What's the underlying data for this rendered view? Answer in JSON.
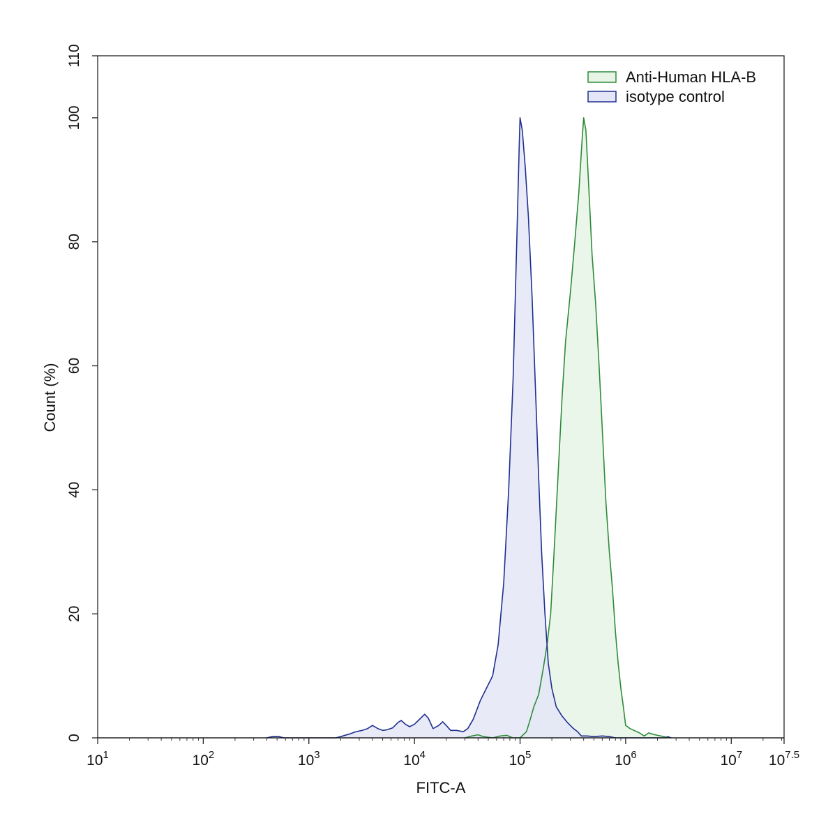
{
  "chart_data": {
    "type": "area",
    "title": "",
    "xlabel": "FITC-A",
    "ylabel": "Count  (%)",
    "x_scale": "log10",
    "xlim": [
      10,
      31622777
    ],
    "ylim": [
      0,
      110
    ],
    "grid": false,
    "legend_position": "top-right",
    "x_ticks": [
      {
        "value": 10,
        "base": "10",
        "exp": "1"
      },
      {
        "value": 100,
        "base": "10",
        "exp": "2"
      },
      {
        "value": 1000,
        "base": "10",
        "exp": "3"
      },
      {
        "value": 10000,
        "base": "10",
        "exp": "4"
      },
      {
        "value": 100000,
        "base": "10",
        "exp": "5"
      },
      {
        "value": 1000000,
        "base": "10",
        "exp": "6"
      },
      {
        "value": 10000000,
        "base": "10",
        "exp": "7"
      },
      {
        "value": 31622777,
        "base": "10",
        "exp": "7.5"
      }
    ],
    "y_ticks": [
      "0",
      "20",
      "40",
      "60",
      "80",
      "100",
      "110"
    ],
    "series": [
      {
        "name": "Anti-Human HLA-B",
        "stroke": "#2e8b3a",
        "fill": "#e8f4e6",
        "points": [
          [
            30000,
            0
          ],
          [
            35000,
            0.3
          ],
          [
            40000,
            0.5
          ],
          [
            45000,
            0.2
          ],
          [
            55000,
            0
          ],
          [
            65000,
            0.3
          ],
          [
            75000,
            0.4
          ],
          [
            85000,
            0
          ],
          [
            100000,
            0
          ],
          [
            115000,
            1
          ],
          [
            125000,
            3
          ],
          [
            135000,
            5
          ],
          [
            150000,
            7
          ],
          [
            165000,
            11
          ],
          [
            180000,
            15
          ],
          [
            195000,
            20
          ],
          [
            210000,
            30
          ],
          [
            230000,
            43
          ],
          [
            250000,
            55
          ],
          [
            270000,
            64
          ],
          [
            300000,
            72
          ],
          [
            330000,
            80
          ],
          [
            360000,
            88
          ],
          [
            385000,
            96
          ],
          [
            400000,
            100
          ],
          [
            420000,
            98
          ],
          [
            450000,
            88
          ],
          [
            480000,
            78
          ],
          [
            520000,
            70
          ],
          [
            560000,
            60
          ],
          [
            600000,
            50
          ],
          [
            650000,
            38
          ],
          [
            700000,
            30
          ],
          [
            750000,
            24
          ],
          [
            800000,
            17
          ],
          [
            850000,
            12
          ],
          [
            900000,
            8
          ],
          [
            950000,
            5
          ],
          [
            1000000,
            2
          ],
          [
            1100000,
            1.5
          ],
          [
            1200000,
            1.2
          ],
          [
            1350000,
            0.8
          ],
          [
            1500000,
            0.3
          ],
          [
            1650000,
            0.8
          ],
          [
            1800000,
            0.6
          ],
          [
            2000000,
            0.4
          ],
          [
            2300000,
            0.2
          ],
          [
            2600000,
            0
          ]
        ]
      },
      {
        "name": "isotype control",
        "stroke": "#1f2f8f",
        "fill": "#e4e6f7",
        "points": [
          [
            400,
            0
          ],
          [
            450,
            0.2
          ],
          [
            520,
            0.2
          ],
          [
            580,
            0
          ],
          [
            1800,
            0
          ],
          [
            2100,
            0.3
          ],
          [
            2400,
            0.6
          ],
          [
            2800,
            1
          ],
          [
            3200,
            1.2
          ],
          [
            3600,
            1.5
          ],
          [
            4000,
            2
          ],
          [
            4500,
            1.5
          ],
          [
            5000,
            1.2
          ],
          [
            5500,
            1.3
          ],
          [
            6200,
            1.6
          ],
          [
            7000,
            2.5
          ],
          [
            7500,
            2.8
          ],
          [
            8200,
            2.2
          ],
          [
            9000,
            1.8
          ],
          [
            10000,
            2.2
          ],
          [
            11500,
            3.2
          ],
          [
            12500,
            3.8
          ],
          [
            13500,
            3.2
          ],
          [
            15000,
            1.5
          ],
          [
            17000,
            2
          ],
          [
            18500,
            2.6
          ],
          [
            20000,
            2
          ],
          [
            22000,
            1.2
          ],
          [
            25000,
            1.2
          ],
          [
            29000,
            1
          ],
          [
            32000,
            1.5
          ],
          [
            36000,
            3
          ],
          [
            42000,
            6
          ],
          [
            48000,
            8
          ],
          [
            55000,
            10
          ],
          [
            62000,
            15
          ],
          [
            70000,
            25
          ],
          [
            78000,
            40
          ],
          [
            86000,
            58
          ],
          [
            93000,
            80
          ],
          [
            98000,
            95
          ],
          [
            100000,
            100
          ],
          [
            105000,
            98
          ],
          [
            112000,
            92
          ],
          [
            120000,
            84
          ],
          [
            130000,
            71
          ],
          [
            140000,
            56
          ],
          [
            150000,
            42
          ],
          [
            160000,
            30
          ],
          [
            172000,
            20
          ],
          [
            185000,
            12
          ],
          [
            200000,
            8
          ],
          [
            220000,
            5
          ],
          [
            250000,
            3.5
          ],
          [
            280000,
            2.5
          ],
          [
            320000,
            1.5
          ],
          [
            350000,
            1
          ],
          [
            380000,
            0.3
          ],
          [
            430000,
            0.3
          ],
          [
            500000,
            0.2
          ],
          [
            600000,
            0.3
          ],
          [
            700000,
            0.2
          ],
          [
            800000,
            0
          ],
          [
            2400000,
            0
          ],
          [
            2500000,
            0.2
          ],
          [
            2700000,
            0
          ]
        ]
      }
    ]
  }
}
